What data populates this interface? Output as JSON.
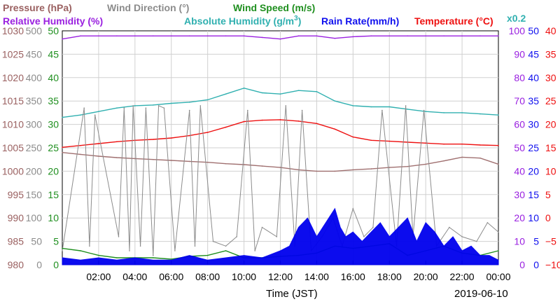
{
  "chart_data": {
    "type": "line",
    "date": "2019-06-10",
    "xlabel": "Time (JST)",
    "x_ticks": [
      "02:00",
      "04:00",
      "06:00",
      "08:00",
      "10:00",
      "12:00",
      "14:00",
      "16:00",
      "18:00",
      "20:00",
      "22:00",
      "00:00"
    ],
    "legend": {
      "pressure": "Pressure (hPa)",
      "wind_direction": "Wind Direction (°)",
      "wind_speed": "Wind Speed (m/s)",
      "relative_humidity": "Relative Humidity (%)",
      "absolute_humidity_base": "Absolute Humidity (g/m",
      "absolute_humidity_sup": "3",
      "absolute_humidity_close": ")",
      "absolute_humidity_scale": "x0.2",
      "rain_rate": "Rain Rate(mm/h)",
      "temperature": "Temperature (°C)"
    },
    "axes": {
      "pressure": {
        "range": [
          980,
          1030
        ],
        "ticks": [
          "1030",
          "1025",
          "1020",
          "1015",
          "1010",
          "1005",
          "1000",
          "995",
          "990",
          "985",
          "980"
        ],
        "color": "#9a6060"
      },
      "wind_direction": {
        "range": [
          0,
          500
        ],
        "ticks": [
          "500",
          "450",
          "400",
          "350",
          "300",
          "250",
          "200",
          "150",
          "100",
          "50",
          "0"
        ],
        "color": "#8c8c8c"
      },
      "wind_speed": {
        "range": [
          0,
          50
        ],
        "ticks": [
          "50",
          "45",
          "40",
          "35",
          "30",
          "25",
          "20",
          "15",
          "10",
          "5",
          "0"
        ],
        "color": "#1f8f1f"
      },
      "relative_humidity": {
        "range": [
          0,
          100
        ],
        "ticks": [
          "100",
          "90",
          "80",
          "70",
          "60",
          "50",
          "40",
          "30",
          "20",
          "10",
          "0"
        ],
        "color": "#9a20e0"
      },
      "rain_rate": {
        "range": [
          0,
          50
        ],
        "ticks": [
          "50",
          "45",
          "40",
          "35",
          "30",
          "25",
          "20",
          "15",
          "10",
          "5",
          "0"
        ],
        "color": "#1010ee"
      },
      "temperature": {
        "range": [
          -10,
          40
        ],
        "ticks": [
          "40",
          "35",
          "30",
          "25",
          "20",
          "15",
          "10",
          "5",
          "0",
          "−5",
          "−10"
        ],
        "color": "#ee1010"
      }
    },
    "series": [
      {
        "name": "Pressure (hPa)",
        "axis": "pressure",
        "color": "#a07070",
        "x": [
          0,
          1,
          2,
          3,
          4,
          5,
          6,
          7,
          8,
          9,
          10,
          11,
          12,
          13,
          14,
          15,
          16,
          17,
          18,
          19,
          20,
          21,
          22,
          23,
          24
        ],
        "y": [
          1004.0,
          1003.6,
          1003.2,
          1002.9,
          1002.7,
          1002.5,
          1002.3,
          1002.1,
          1001.9,
          1001.6,
          1001.4,
          1001.1,
          1000.8,
          1000.3,
          1000.0,
          1000.0,
          1000.3,
          1000.5,
          1000.8,
          1001.0,
          1001.5,
          1002.2,
          1003.0,
          1002.8,
          1001.5
        ]
      },
      {
        "name": "Absolute Humidity (g/m3)",
        "axis": "relative_humidity",
        "scale": "x0.2",
        "color": "#30b0b0",
        "x": [
          0,
          1,
          2,
          3,
          4,
          5,
          6,
          7,
          8,
          9,
          10,
          11,
          12,
          13,
          14,
          15,
          16,
          17,
          18,
          19,
          20,
          21,
          22,
          23,
          24
        ],
        "y": [
          63.0,
          64.0,
          65.5,
          67.0,
          68.0,
          68.3,
          69.0,
          69.5,
          70.5,
          73.0,
          75.5,
          73.5,
          73.0,
          74.5,
          74.0,
          70.0,
          68.0,
          67.5,
          67.5,
          66.5,
          65.5,
          65.0,
          65.0,
          64.5,
          64.0
        ]
      },
      {
        "name": "Relative Humidity (%)",
        "axis": "relative_humidity",
        "color": "#9a20e0",
        "x": [
          0,
          1,
          2,
          3,
          4,
          5,
          6,
          7,
          8,
          9,
          10,
          11,
          12,
          13,
          14,
          15,
          16,
          17,
          18,
          19,
          20,
          21,
          22,
          23,
          24
        ],
        "y": [
          96.5,
          97.8,
          97.8,
          97.8,
          97.8,
          97.8,
          97.8,
          97.8,
          97.8,
          97.8,
          97.8,
          97.2,
          96.5,
          97.8,
          97.8,
          96.8,
          97.5,
          97.8,
          97.8,
          97.8,
          97.8,
          97.8,
          97.8,
          97.8,
          97.8
        ]
      },
      {
        "name": "Temperature (°C)",
        "axis": "temperature",
        "color": "#ee1010",
        "x": [
          0,
          1,
          2,
          3,
          4,
          5,
          6,
          7,
          8,
          9,
          10,
          11,
          12,
          13,
          14,
          15,
          16,
          17,
          18,
          19,
          20,
          21,
          22,
          23,
          24
        ],
        "y": [
          15.1,
          15.5,
          15.9,
          16.3,
          16.6,
          16.8,
          17.1,
          17.6,
          18.3,
          19.4,
          20.6,
          20.9,
          21.0,
          20.7,
          20.2,
          19.0,
          17.3,
          16.6,
          16.4,
          16.2,
          16.0,
          15.8,
          15.8,
          15.6,
          15.5
        ]
      },
      {
        "name": "Wind Direction (°)",
        "axis": "wind_direction",
        "color": "#8c8c8c",
        "x": [
          0,
          1.2,
          1.5,
          1.8,
          3.1,
          3.4,
          3.7,
          3.9,
          4.3,
          4.6,
          5.0,
          5.3,
          5.6,
          6.2,
          7.0,
          7.3,
          7.6,
          8.3,
          9.0,
          9.6,
          10.2,
          10.6,
          11.0,
          11.8,
          12.3,
          12.8,
          13.2,
          13.7,
          14.3,
          14.9,
          15.4,
          16.0,
          16.6,
          17.1,
          17.6,
          18.4,
          18.9,
          19.3,
          19.9,
          20.6,
          21.3,
          22.0,
          22.8,
          23.4,
          24.0
        ],
        "y": [
          30,
          335,
          40,
          320,
          60,
          335,
          30,
          340,
          40,
          335,
          20,
          340,
          335,
          30,
          330,
          40,
          340,
          50,
          40,
          60,
          330,
          30,
          80,
          60,
          340,
          40,
          330,
          30,
          60,
          100,
          40,
          120,
          60,
          80,
          330,
          40,
          340,
          60,
          330,
          40,
          80,
          60,
          50,
          90,
          70
        ]
      },
      {
        "name": "Wind Speed (m/s)",
        "axis": "wind_speed",
        "color": "#1f8f1f",
        "x": [
          0,
          1,
          2,
          3,
          4,
          5,
          6,
          7,
          8,
          9,
          10,
          11,
          12,
          13,
          14,
          15,
          16,
          17,
          18,
          19,
          20,
          21,
          22,
          23,
          24
        ],
        "y": [
          3.5,
          3.0,
          2.0,
          1.5,
          1.5,
          1.5,
          1.2,
          1.8,
          2.0,
          3.0,
          1.5,
          1.5,
          1.8,
          2.0,
          2.5,
          4.0,
          3.5,
          4.0,
          4.5,
          2.0,
          3.0,
          4.0,
          2.5,
          2.0,
          3.0
        ]
      },
      {
        "name": "Rain Rate(mm/h)",
        "axis": "rain_rate",
        "color": "#0000ee",
        "x": [
          0,
          1,
          2,
          3,
          4,
          5,
          6,
          7,
          8,
          9,
          10,
          11,
          12,
          12.5,
          13,
          13.5,
          14,
          14.5,
          15,
          15.3,
          15.6,
          16,
          16.5,
          17,
          17.5,
          18,
          18.5,
          19,
          19.5,
          20,
          20.5,
          21,
          21.5,
          22,
          22.5,
          23,
          23.5,
          24
        ],
        "y": [
          1.5,
          1,
          1.5,
          1,
          1.5,
          1,
          1,
          2,
          1,
          1.5,
          2,
          1.5,
          3,
          4,
          8,
          10,
          6,
          9,
          12,
          8,
          6,
          7,
          5,
          7,
          9,
          6,
          8,
          10,
          5,
          9,
          7,
          4,
          6,
          3,
          4,
          2,
          2,
          1
        ]
      }
    ]
  }
}
